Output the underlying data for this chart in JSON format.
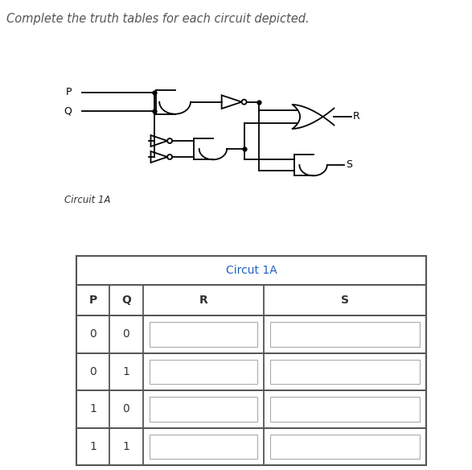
{
  "title_text": "Complete the truth tables for each circuit depicted.",
  "title_color": "#555555",
  "title_fontsize": 10.5,
  "circuit_label": "Circuit 1A",
  "circuit_label_color": "#333333",
  "circuit_label_fontsize": 8.5,
  "table_title": "Circut 1A",
  "table_title_color": "#2060c0",
  "table_title_fontsize": 10,
  "col_header_P": "P",
  "col_header_Q": "Q",
  "col_header_R": "R",
  "col_header_S": "S",
  "col_header_color": "#333333",
  "col_header_fontsize": 10,
  "rows": [
    [
      "0",
      "0"
    ],
    [
      "0",
      "1"
    ],
    [
      "1",
      "0"
    ],
    [
      "1",
      "1"
    ]
  ],
  "input_color": "#333333",
  "input_fontsize": 10,
  "bg_color": "#ffffff",
  "table_border_color": "#555555",
  "cell_border_color": "#aaaaaa",
  "input_label_P": "P",
  "input_label_Q": "Q",
  "output_label_R": "R",
  "output_label_S": "S",
  "gate_color": "#000000",
  "wire_color": "#000000",
  "dot_color": "#000000"
}
